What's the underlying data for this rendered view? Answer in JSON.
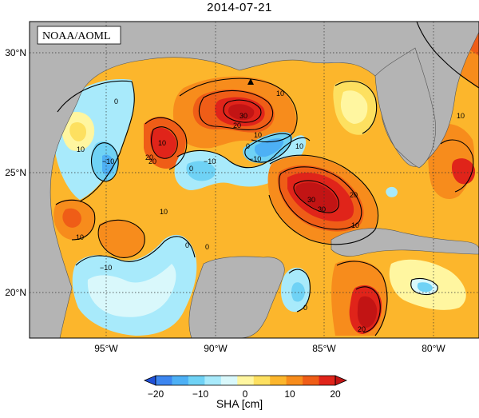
{
  "title": "2014-07-21",
  "credit": "NOAA/AOML",
  "lat_labels": [
    "30°N",
    "25°N",
    "20°N"
  ],
  "lon_labels": [
    "95°W",
    "90°W",
    "85°W",
    "80°W"
  ],
  "colorbar": {
    "label": "SHA [cm]",
    "ticks": [
      "−20",
      "−10",
      "0",
      "10",
      "20"
    ],
    "colors": [
      "#2050d8",
      "#3d86f0",
      "#4db0f5",
      "#6fd2f5",
      "#a8eafb",
      "#d9f8fb",
      "#fff6a0",
      "#fde060",
      "#fcb62c",
      "#f78c1c",
      "#ef5d17",
      "#e0241a",
      "#c21414"
    ]
  },
  "contour_labels": [
    "10",
    "20",
    "30",
    "10",
    "0",
    "10",
    "−10",
    "0",
    "10",
    "20",
    "30",
    "10",
    "−10",
    "0",
    "10",
    "20",
    "30",
    "0",
    "−10",
    "10",
    "0",
    "10",
    "20",
    "0",
    "−10",
    "20",
    "10"
  ],
  "land_color": "#b4b4b4"
}
